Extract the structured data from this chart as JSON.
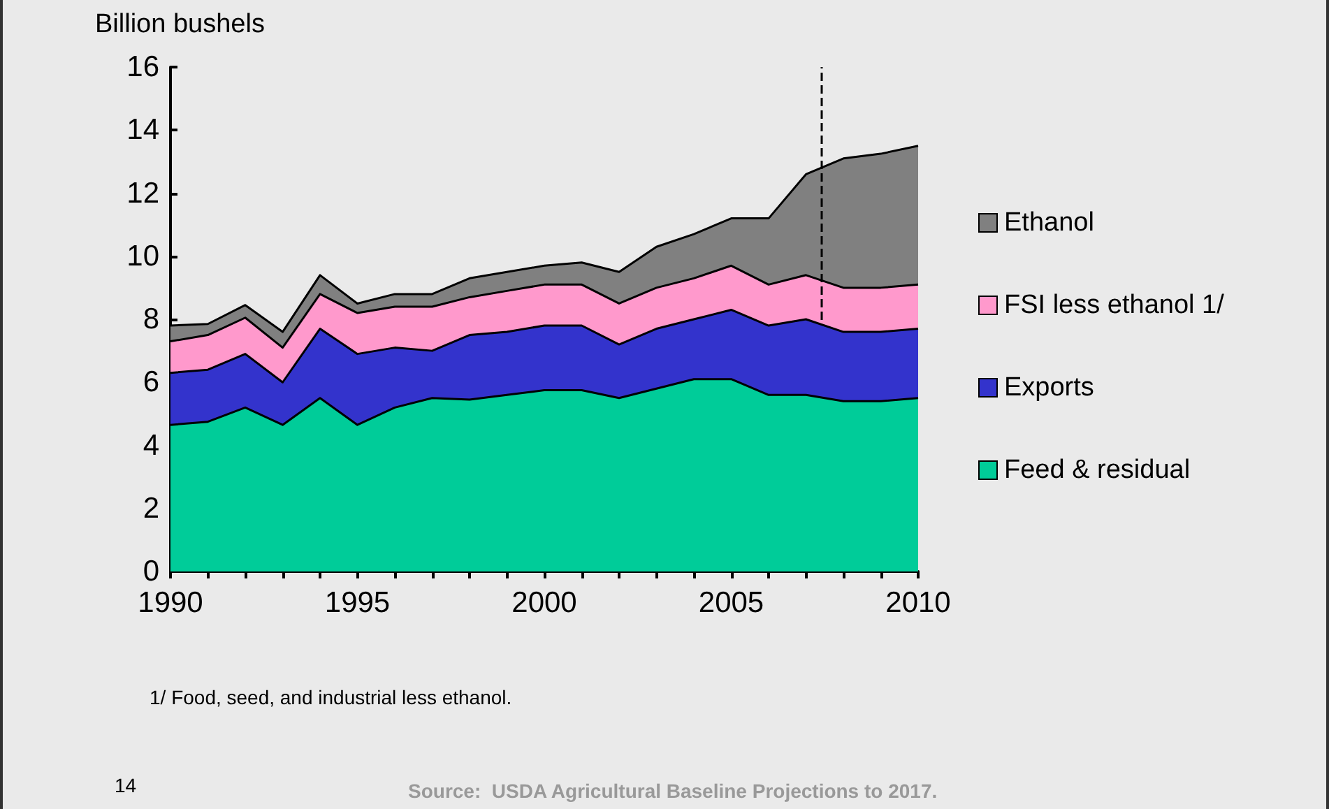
{
  "chart_data": {
    "type": "area",
    "stacked": true,
    "ylabel": "Billion bushels",
    "x": [
      1990,
      1991,
      1992,
      1993,
      1994,
      1995,
      1996,
      1997,
      1998,
      1999,
      2000,
      2001,
      2002,
      2003,
      2004,
      2005,
      2006,
      2007,
      2008,
      2009,
      2010
    ],
    "series": [
      {
        "name": "Feed & residual",
        "color": "#00cc99",
        "values": [
          4.65,
          4.75,
          5.2,
          4.65,
          5.5,
          4.65,
          5.2,
          5.5,
          5.45,
          5.6,
          5.75,
          5.75,
          5.5,
          5.8,
          6.1,
          6.1,
          5.6,
          5.6,
          5.4,
          5.4,
          5.5
        ]
      },
      {
        "name": "Exports",
        "color": "#3333cc",
        "values": [
          1.65,
          1.65,
          1.7,
          1.35,
          2.2,
          2.25,
          1.9,
          1.5,
          2.05,
          2.0,
          2.05,
          2.05,
          1.7,
          1.9,
          1.9,
          2.2,
          2.2,
          2.4,
          2.2,
          2.2,
          2.2
        ]
      },
      {
        "name": "FSI less ethanol 1/",
        "color": "#ff99cc",
        "values": [
          1.0,
          1.1,
          1.15,
          1.1,
          1.1,
          1.3,
          1.3,
          1.4,
          1.2,
          1.3,
          1.3,
          1.3,
          1.3,
          1.3,
          1.3,
          1.4,
          1.3,
          1.4,
          1.4,
          1.4,
          1.4
        ]
      },
      {
        "name": "Ethanol",
        "color": "#808080",
        "values": [
          0.5,
          0.35,
          0.4,
          0.5,
          0.6,
          0.3,
          0.4,
          0.4,
          0.6,
          0.6,
          0.6,
          0.7,
          1.0,
          1.3,
          1.4,
          1.5,
          2.1,
          3.2,
          4.1,
          4.25,
          4.4
        ]
      }
    ],
    "xlim": [
      1990,
      2010
    ],
    "xticks": [
      1990,
      {
        "value": 1991,
        "label": null
      },
      {
        "value": 1992,
        "label": null
      },
      {
        "value": 1993,
        "label": null
      },
      {
        "value": 1994,
        "label": null
      },
      1995,
      {
        "value": 1996,
        "label": null
      },
      {
        "value": 1997,
        "label": null
      },
      {
        "value": 1998,
        "label": null
      },
      {
        "value": 1999,
        "label": null
      },
      2000,
      {
        "value": 2001,
        "label": null
      },
      {
        "value": 2002,
        "label": null
      },
      {
        "value": 2003,
        "label": null
      },
      {
        "value": 2004,
        "label": null
      },
      2005,
      {
        "value": 2006,
        "label": null
      },
      {
        "value": 2007,
        "label": null
      },
      {
        "value": 2008,
        "label": null
      },
      {
        "value": 2009,
        "label": null
      },
      2010
    ],
    "ylim": [
      0,
      16
    ],
    "yticks": [
      0,
      2,
      4,
      6,
      8,
      10,
      12,
      14,
      16
    ],
    "ref_lines": [
      {
        "axis": "x",
        "value": 2007.4,
        "color": "#000000",
        "line_style": "dashed"
      }
    ],
    "legend": "right",
    "grid": false,
    "annotations": [
      "1/ Food, seed, and industrial less ethanol.",
      "14",
      "Source:  USDA Agricultural Baseline Projections to 2017."
    ]
  }
}
